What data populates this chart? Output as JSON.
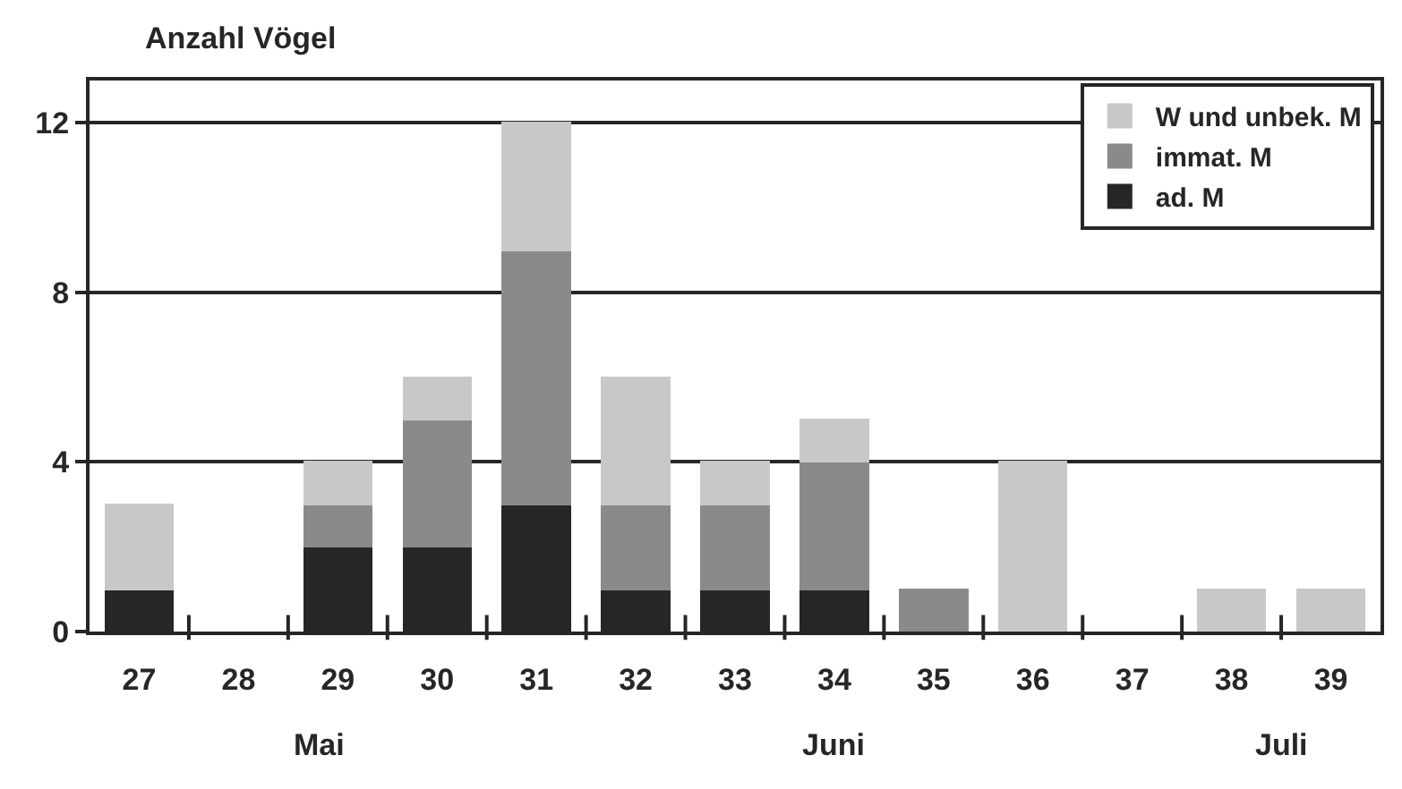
{
  "chart_data": {
    "type": "bar",
    "stacked": true,
    "ylabel": "Anzahl Vögel",
    "categories": [
      "27",
      "28",
      "29",
      "30",
      "31",
      "32",
      "33",
      "34",
      "35",
      "36",
      "37",
      "38",
      "39"
    ],
    "series": [
      {
        "name": "ad. M",
        "color": "#262626",
        "values": [
          1,
          0,
          2,
          2,
          3,
          1,
          1,
          1,
          0,
          0,
          0,
          0,
          0
        ]
      },
      {
        "name": "immat. M",
        "color": "#8a8a8a",
        "values": [
          0,
          0,
          1,
          3,
          6,
          2,
          2,
          3,
          1,
          0,
          0,
          0,
          0
        ]
      },
      {
        "name": "W und unbek. M",
        "color": "#c8c8c8",
        "values": [
          2,
          0,
          1,
          1,
          3,
          3,
          1,
          1,
          0,
          4,
          0,
          1,
          1
        ]
      }
    ],
    "ylim": [
      0,
      13
    ],
    "yticks": [
      0,
      4,
      8,
      12
    ],
    "grid": "y",
    "legend": "top right",
    "annotations": [
      "Mai",
      "Juni",
      "Juli"
    ]
  }
}
